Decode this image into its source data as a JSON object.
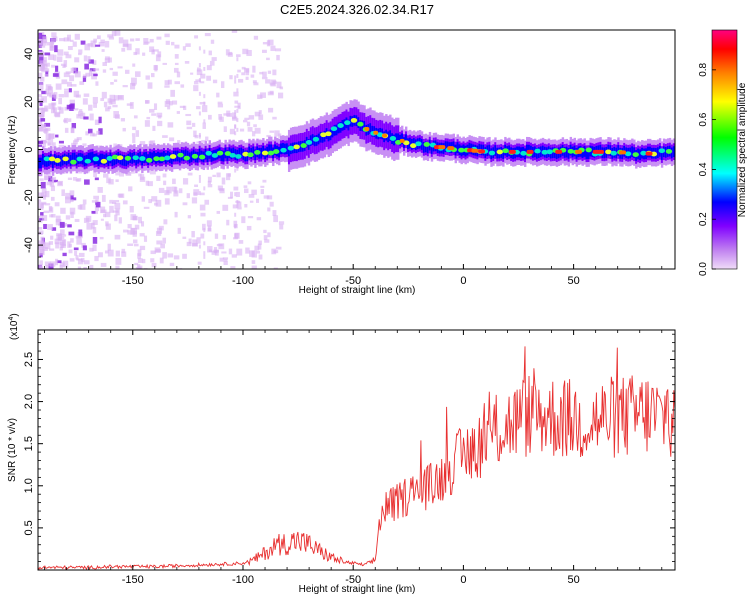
{
  "figure": {
    "title": "C2E5.2024.326.02.34.R17"
  },
  "chart_data": [
    {
      "type": "heatmap",
      "title": "C2E5.2024.326.02.34.R17",
      "xlabel": "Height of straight line (km)",
      "ylabel": "Frequency (Hz)",
      "xlim": [
        -193,
        96
      ],
      "ylim": [
        -50,
        50
      ],
      "xticks": [
        -150,
        -100,
        -50,
        0,
        50
      ],
      "yticks": [
        -40,
        -20,
        0,
        20,
        40
      ],
      "grid": false,
      "colorbar": {
        "label": "Normalized spectral amplitude",
        "range": [
          0,
          0.96
        ],
        "ticks": [
          0.0,
          0.2,
          0.4,
          0.6,
          0.8
        ],
        "tick_labels": [
          "0.0",
          "0.2",
          "0.4",
          "0.6",
          "0.8"
        ],
        "colors": [
          "#e8c8f8",
          "#8000ff",
          "#0000ff",
          "#00ffff",
          "#00ff00",
          "#ffff00",
          "#ff8000",
          "#ff0000",
          "#ff0080"
        ]
      },
      "ridge": {
        "description_points_x": [
          -193,
          -170,
          -150,
          -130,
          -110,
          -100,
          -90,
          -80,
          -70,
          -60,
          -55,
          -50,
          -45,
          -40,
          -30,
          -20,
          -15,
          -10,
          0,
          10,
          20,
          30,
          40,
          50,
          60,
          70,
          80,
          96
        ],
        "description_points_y": [
          -5,
          -4,
          -4,
          -3,
          -2,
          -2,
          -1,
          0,
          3,
          7,
          10,
          12,
          9,
          7,
          4,
          2,
          1,
          1,
          0,
          -1,
          -1,
          -1,
          -1,
          -1,
          -1,
          -1,
          -2,
          -1
        ]
      }
    },
    {
      "type": "line",
      "xlabel": "Height of straight line (km)",
      "ylabel": "SNR (10 * v/v)",
      "y_multiplier": "(x10",
      "y_multiplier_exp": "4",
      "y_multiplier_close": ")",
      "xlim": [
        -193,
        96
      ],
      "ylim": [
        0,
        2.85
      ],
      "xticks": [
        -150,
        -100,
        -50,
        0,
        50
      ],
      "yticks": [
        0.5,
        1.0,
        1.5,
        2.0,
        2.5
      ],
      "ytick_labels": [
        "0.5",
        "1.0",
        "1.5",
        "2.0",
        "2.5"
      ],
      "grid": false,
      "series": [
        {
          "color": "#e83030",
          "x": [
            -193,
            -180,
            -170,
            -160,
            -150,
            -140,
            -130,
            -120,
            -110,
            -100,
            -95,
            -90,
            -85,
            -80,
            -75,
            -70,
            -65,
            -60,
            -55,
            -50,
            -45,
            -40,
            -38,
            -35,
            -30,
            -25,
            -20,
            -15,
            -10,
            -5,
            0,
            5,
            10,
            15,
            20,
            25,
            30,
            35,
            40,
            45,
            50,
            55,
            60,
            65,
            70,
            75,
            80,
            85,
            90,
            93,
            96
          ],
          "y": [
            0.03,
            0.03,
            0.03,
            0.04,
            0.04,
            0.04,
            0.05,
            0.06,
            0.07,
            0.08,
            0.12,
            0.2,
            0.3,
            0.32,
            0.35,
            0.3,
            0.22,
            0.15,
            0.1,
            0.08,
            0.06,
            0.12,
            0.6,
            0.75,
            0.8,
            0.9,
            0.95,
            1.0,
            1.1,
            1.25,
            1.35,
            1.45,
            1.55,
            1.65,
            1.72,
            1.78,
            1.85,
            1.85,
            1.82,
            1.8,
            1.78,
            1.76,
            1.78,
            1.8,
            1.82,
            1.82,
            1.85,
            1.85,
            1.8,
            1.9,
            1.7
          ]
        }
      ]
    }
  ]
}
